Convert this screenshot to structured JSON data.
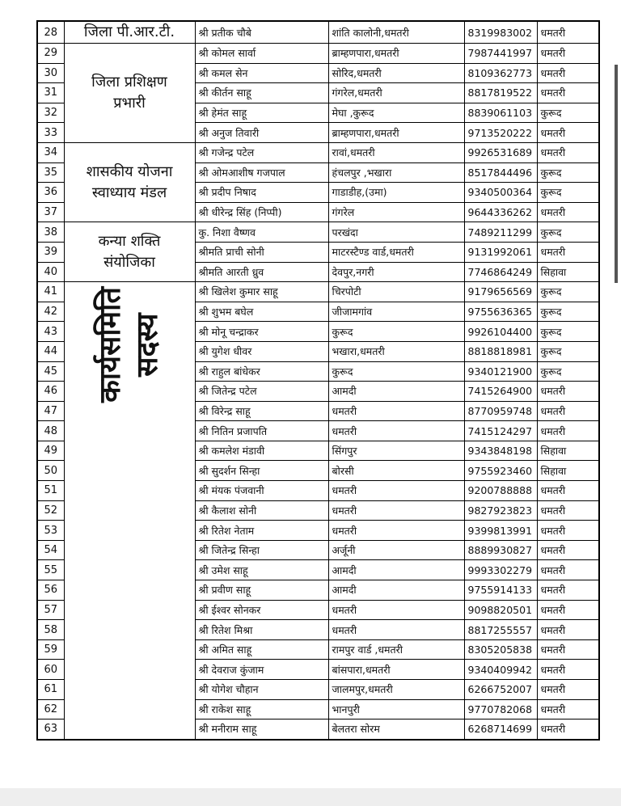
{
  "table": {
    "groups": [
      {
        "label": [
          "जिला पी.आर.टी."
        ],
        "rows": [
          [
            28,
            "श्री प्रतीक चौबे",
            "शांति कालोनी,धमतरी",
            "8319983002",
            "धमतरी"
          ]
        ]
      },
      {
        "label": [
          "जिला प्रशिक्षण",
          "प्रभारी"
        ],
        "rows": [
          [
            29,
            "श्री कोमल सार्वा",
            "ब्राम्हणपारा,धमतरी",
            "7987441997",
            "धमतरी"
          ],
          [
            30,
            "श्री कमल सेन",
            "सोरिद,धमतरी",
            "8109362773",
            "धमतरी"
          ],
          [
            31,
            "श्री कीर्तन साहू",
            "गंगरेल,धमतरी",
            "8817819522",
            "धमतरी"
          ],
          [
            32,
            "श्री हेमंत साहू",
            "मेघा ,कुरूद",
            "8839061103",
            "कुरूद"
          ],
          [
            33,
            "श्री अनुज तिवारी",
            "ब्राम्हणपारा,धमतरी",
            "9713520222",
            "धमतरी"
          ]
        ]
      },
      {
        "label": [
          "शासकीय योजना",
          "स्वाध्याय मंडल"
        ],
        "rows": [
          [
            34,
            "श्री गजेन्द्र पटेल",
            "रावां,धमतरी",
            "9926531689",
            "धमतरी"
          ],
          [
            35,
            "श्री ओमआशीष गजपाल",
            "हंचलपुर ,भखारा",
            "8517844496",
            "कुरूद"
          ],
          [
            36,
            "श्री प्रदीप निषाद",
            "गाडाडीह,(उमा)",
            "9340500364",
            "कुरूद"
          ],
          [
            37,
            "श्री धीरेन्द्र सिंह (निप्पी)",
            "गंगरेल",
            "9644336262",
            "धमतरी"
          ]
        ]
      },
      {
        "label": [
          "कन्या शक्ति",
          "संयोजिका"
        ],
        "rows": [
          [
            38,
            "कु. निशा वैष्णव",
            "परखंदा",
            "7489211299",
            "कुरूद"
          ],
          [
            39,
            "श्रीमति प्राची सोनी",
            "माटरस्टैण्ड वार्ड,धमतरी",
            "9131992061",
            "धमतरी"
          ],
          [
            40,
            "श्रीमति आरती ध्रुव",
            "देवपुर,नगरी",
            "7746864249",
            "सिहावा"
          ]
        ]
      },
      {
        "label": [
          "कार्यसमिति",
          "सदस्य"
        ],
        "vertical": true,
        "rows": [
          [
            41,
            "श्री खिलेश कुमार साहू",
            "चिरपोटी",
            "9179656569",
            "कुरूद"
          ],
          [
            42,
            "श्री शुभम बघेल",
            "जीजामगांव",
            "9755636365",
            "कुरूद"
          ],
          [
            43,
            "श्री मोनू चन्द्राकर",
            "कुरूद",
            "9926104400",
            "कुरूद"
          ],
          [
            44,
            "श्री युगेश धीवर",
            "भखारा,धमतरी",
            "8818818981",
            "कुरूद"
          ],
          [
            45,
            "श्री राहुल बांधेकर",
            "कुरूद",
            "9340121900",
            "कुरूद"
          ],
          [
            46,
            "श्री जितेन्द्र पटेल",
            "आमदी",
            "7415264900",
            "धमतरी"
          ],
          [
            47,
            "श्री विरेन्द्र साहू",
            "धमतरी",
            "8770959748",
            "धमतरी"
          ],
          [
            48,
            "श्री नितिन प्रजापति",
            "धमतरी",
            "7415124297",
            "धमतरी"
          ],
          [
            49,
            "श्री कमलेश मंडावी",
            "सिंगपुर",
            "9343848198",
            "सिहावा"
          ],
          [
            50,
            "श्री सुदर्शन सिन्हा",
            "बोरसी",
            "9755923460",
            "सिहावा"
          ],
          [
            51,
            "श्री मंयक पंजवानी",
            "धमतरी",
            "9200788888",
            "धमतरी"
          ],
          [
            52,
            "श्री कैलाश सोनी",
            "धमतरी",
            "9827923823",
            "धमतरी"
          ],
          [
            53,
            "श्री रितेश नेताम",
            "धमतरी",
            "9399813991",
            "धमतरी"
          ],
          [
            54,
            "श्री जितेन्द्र सिन्हा",
            "अर्जूनी",
            "8889930827",
            "धमतरी"
          ],
          [
            55,
            "श्री उमेश साहू",
            "आमदी",
            "9993302279",
            "धमतरी"
          ],
          [
            56,
            "श्री प्रवीण साहू",
            "आमदी",
            "9755914133",
            "धमतरी"
          ],
          [
            57,
            "श्री ईश्वर सोनकर",
            "धमतरी",
            "9098820501",
            "धमतरी"
          ],
          [
            58,
            "श्री रितेश मिश्रा",
            "धमतरी",
            "8817255557",
            "धमतरी"
          ],
          [
            59,
            "श्री अमित साहू",
            "रामपुर वार्ड ,धमतरी",
            "8305205838",
            "धमतरी"
          ],
          [
            60,
            "श्री देवराज कुंजाम",
            "बांसपारा,धमतरी",
            "9340409942",
            "धमतरी"
          ],
          [
            61,
            "श्री योगेश चौहान",
            "जालमपुर,धमतरी",
            "6266752007",
            "धमतरी"
          ],
          [
            62,
            "श्री राकेश साहू",
            "भानपुरी",
            "9770782068",
            "धमतरी"
          ],
          [
            63,
            "श्री मनीराम साहू",
            "बेलतरा सोरम",
            "6268714699",
            "धमतरी"
          ]
        ]
      }
    ]
  }
}
